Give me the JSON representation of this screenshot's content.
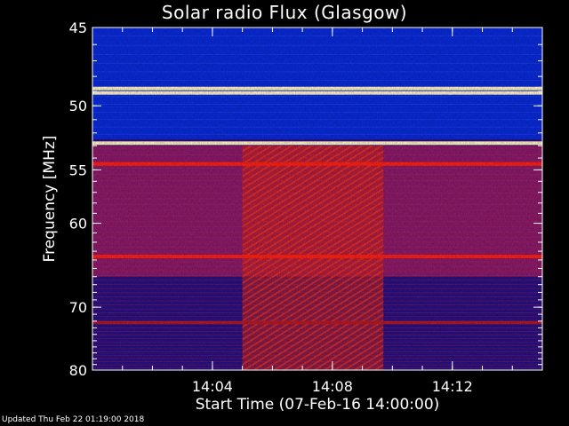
{
  "chart_data": {
    "type": "heatmap",
    "title": "Solar radio Flux (Glasgow)",
    "xlabel": "Start Time (07-Feb-16 14:00:00)",
    "ylabel": "Frequency [MHz]",
    "x_ticks": [
      "14:04",
      "14:08",
      "14:12"
    ],
    "x_tick_minutes": [
      4,
      8,
      12
    ],
    "xlim_minutes": [
      0,
      15
    ],
    "y_ticks": [
      45,
      50,
      55,
      60,
      70,
      80
    ],
    "ylim_mhz": [
      45,
      80
    ],
    "y_scale": "reciprocal",
    "bands_mhz": [
      {
        "freq": 48.8,
        "intensity": "saturated"
      },
      {
        "freq": 49.1,
        "intensity": "saturated"
      },
      {
        "freq": 52.8,
        "intensity": "saturated"
      },
      {
        "freq": 54.5,
        "intensity": "high"
      },
      {
        "freq": 63.6,
        "intensity": "high"
      },
      {
        "freq": 72.2,
        "intensity": "medium"
      }
    ],
    "burst_window_minutes": [
      5,
      9.7
    ],
    "colors": {
      "background_low": "#2a1080",
      "low_band": "#0a2ad8",
      "mid": "#8a1a6a",
      "high": "#d02018",
      "saturated": "#fff2c0"
    }
  },
  "footer": {
    "updated": "Updated Thu Feb 22 01:19:00 2018"
  }
}
